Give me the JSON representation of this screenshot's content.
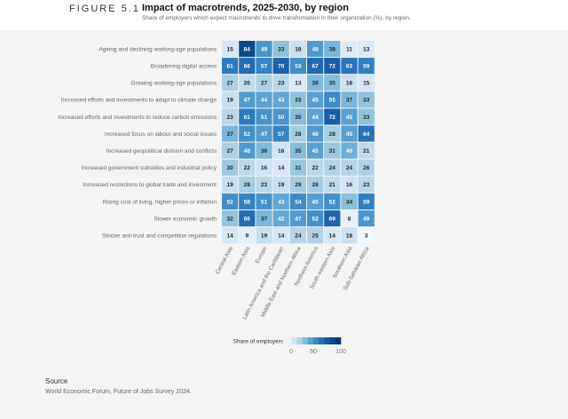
{
  "figure": {
    "label": "FIGURE 5.1",
    "title": "Impact of macrotrends, 2025-2030, by region",
    "subtitle": "Share of employers which expect macrotrends to drive transformation in their organization (%), by region."
  },
  "chart_data": {
    "type": "heatmap",
    "rows": [
      "Ageing and declining working-age populations",
      "Broadening digital access",
      "Growing working-age populations",
      "Increased efforts and investments to adapt to climate change",
      "Increased efforts and investments to reduce carbon emissions",
      "Increased focus on labour and social issues",
      "Increased geopolitical division and conflicts",
      "Increased government subsidies and industrial policy",
      "Increased restrictions to global trade and investment",
      "Rising cost of living, higher prices or inflation",
      "Slower economic growth",
      "Stricter anti-trust and competition regulations"
    ],
    "columns": [
      "Central Asia",
      "Eastern Asia",
      "Europe",
      "Latin America and the Caribbean",
      "Middle East and Northern Africa",
      "Northern America",
      "South-eastern Asia",
      "Southern Asia",
      "Sub-Saharan Africa"
    ],
    "values": [
      [
        15,
        84,
        49,
        33,
        18,
        48,
        38,
        11,
        13
      ],
      [
        61,
        66,
        57,
        70,
        53,
        67,
        72,
        63,
        59
      ],
      [
        27,
        20,
        27,
        23,
        13,
        36,
        35,
        18,
        15
      ],
      [
        19,
        47,
        44,
        43,
        33,
        45,
        55,
        37,
        33
      ],
      [
        23,
        61,
        51,
        50,
        35,
        44,
        72,
        45,
        33
      ],
      [
        37,
        52,
        47,
        57,
        28,
        48,
        28,
        45,
        64
      ],
      [
        27,
        48,
        36,
        16,
        35,
        45,
        31,
        40,
        21
      ],
      [
        30,
        22,
        16,
        14,
        31,
        22,
        24,
        24,
        26
      ],
      [
        19,
        28,
        23,
        19,
        29,
        28,
        21,
        16,
        23
      ],
      [
        52,
        58,
        51,
        43,
        54,
        45,
        52,
        34,
        59
      ],
      [
        32,
        66,
        37,
        42,
        47,
        52,
        69,
        8,
        49
      ],
      [
        14,
        9,
        19,
        14,
        24,
        25,
        14,
        18,
        3
      ]
    ],
    "color_scale": {
      "min": 0,
      "max": 100,
      "low_color": "#ffffff",
      "high_color": "#0c3d7a"
    },
    "legend": {
      "title": "Share of employers",
      "ticks": [
        0,
        50,
        100
      ],
      "position": "bottom-center"
    }
  },
  "source": {
    "title": "Source",
    "text": "World Economic Forum, Future of Jobs Survey 2024."
  }
}
